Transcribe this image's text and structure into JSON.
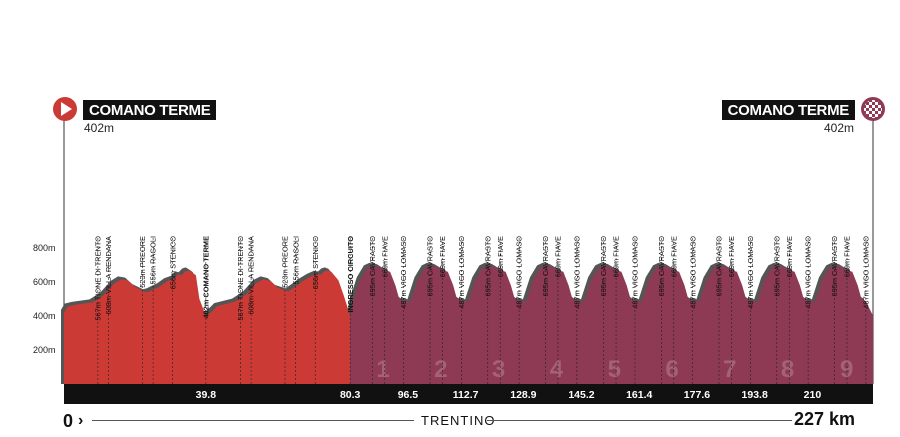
{
  "header": {
    "start_name": "COMANO TERME",
    "start_alt": "402m",
    "finish_name": "COMANO TERME",
    "finish_alt": "402m"
  },
  "footer": {
    "start_km": "0",
    "region": "TRENTINO",
    "total": "227 km"
  },
  "chart_data": {
    "type": "area",
    "title": "",
    "xlabel": "km",
    "ylabel": "altitude (m)",
    "xlim": [
      0,
      227
    ],
    "ylim": [
      0,
      900
    ],
    "y_ticks": [
      {
        "value": 800,
        "label": "800m"
      },
      {
        "value": 600,
        "label": "600m"
      },
      {
        "value": 400,
        "label": "400m"
      },
      {
        "value": 200,
        "label": "200m"
      }
    ],
    "colors": {
      "outer": "#cc3a36",
      "circuit": "#8e3a55",
      "shade": "#555555",
      "ground": "#111111"
    },
    "circuit_start_km": 80.3,
    "circuit_laps": [
      "1",
      "2",
      "3",
      "4",
      "5",
      "6",
      "7",
      "8",
      "9"
    ],
    "profile": [
      [
        0,
        418
      ],
      [
        1,
        455
      ],
      [
        3,
        465
      ],
      [
        8,
        480
      ],
      [
        11,
        520
      ],
      [
        14,
        590
      ],
      [
        16,
        615
      ],
      [
        18,
        608
      ],
      [
        20,
        570
      ],
      [
        23,
        540
      ],
      [
        24,
        545
      ],
      [
        27,
        575
      ],
      [
        29,
        605
      ],
      [
        31,
        620
      ],
      [
        32,
        645
      ],
      [
        33,
        640
      ],
      [
        34,
        662
      ],
      [
        35,
        668
      ],
      [
        36,
        655
      ],
      [
        37,
        640
      ],
      [
        38,
        500
      ],
      [
        39.8,
        402
      ],
      [
        41,
        415
      ],
      [
        43,
        458
      ],
      [
        48,
        485
      ],
      [
        51,
        525
      ],
      [
        54,
        595
      ],
      [
        56,
        615
      ],
      [
        58,
        605
      ],
      [
        60,
        565
      ],
      [
        63,
        545
      ],
      [
        65,
        575
      ],
      [
        67,
        605
      ],
      [
        69,
        630
      ],
      [
        71,
        648
      ],
      [
        72,
        642
      ],
      [
        73,
        662
      ],
      [
        74,
        668
      ],
      [
        75,
        660
      ],
      [
        77,
        610
      ],
      [
        78.5,
        520
      ],
      [
        80.3,
        402
      ],
      [
        81,
        480
      ],
      [
        83,
        610
      ],
      [
        85,
        680
      ],
      [
        86.5,
        695
      ],
      [
        88.5,
        688
      ],
      [
        90,
        669
      ],
      [
        91.5,
        660
      ],
      [
        93,
        580
      ],
      [
        94,
        505
      ],
      [
        95.3,
        487
      ],
      [
        96.5,
        487
      ],
      [
        97.2,
        480
      ],
      [
        99.2,
        610
      ],
      [
        101.2,
        680
      ],
      [
        102.7,
        695
      ],
      [
        104.7,
        688
      ],
      [
        106.2,
        669
      ],
      [
        107.7,
        660
      ],
      [
        109.2,
        580
      ],
      [
        110.2,
        505
      ],
      [
        111.5,
        487
      ],
      [
        112.7,
        487
      ],
      [
        113.4,
        480
      ],
      [
        115.4,
        610
      ],
      [
        117.4,
        680
      ],
      [
        118.9,
        695
      ],
      [
        120.9,
        688
      ],
      [
        122.4,
        669
      ],
      [
        123.9,
        660
      ],
      [
        125.4,
        580
      ],
      [
        126.4,
        505
      ],
      [
        127.7,
        487
      ],
      [
        128.9,
        487
      ],
      [
        129.6,
        480
      ],
      [
        131.6,
        610
      ],
      [
        133.6,
        680
      ],
      [
        135.1,
        695
      ],
      [
        137.1,
        688
      ],
      [
        138.6,
        669
      ],
      [
        140.1,
        660
      ],
      [
        141.6,
        580
      ],
      [
        142.6,
        505
      ],
      [
        143.9,
        487
      ],
      [
        145.2,
        487
      ],
      [
        145.9,
        480
      ],
      [
        147.9,
        610
      ],
      [
        149.9,
        680
      ],
      [
        151.4,
        695
      ],
      [
        153.4,
        688
      ],
      [
        154.9,
        669
      ],
      [
        156.4,
        660
      ],
      [
        157.9,
        580
      ],
      [
        158.9,
        505
      ],
      [
        160.2,
        487
      ],
      [
        161.4,
        487
      ],
      [
        162.1,
        480
      ],
      [
        164.1,
        610
      ],
      [
        166.1,
        680
      ],
      [
        167.6,
        695
      ],
      [
        169.6,
        688
      ],
      [
        171.1,
        669
      ],
      [
        172.6,
        660
      ],
      [
        174.1,
        580
      ],
      [
        175.1,
        505
      ],
      [
        176.4,
        487
      ],
      [
        177.6,
        487
      ],
      [
        178.3,
        480
      ],
      [
        180.3,
        610
      ],
      [
        182.3,
        680
      ],
      [
        183.8,
        695
      ],
      [
        185.8,
        688
      ],
      [
        187.3,
        669
      ],
      [
        188.8,
        660
      ],
      [
        190.3,
        580
      ],
      [
        191.3,
        505
      ],
      [
        192.6,
        487
      ],
      [
        193.8,
        487
      ],
      [
        194.5,
        480
      ],
      [
        196.5,
        610
      ],
      [
        198.5,
        680
      ],
      [
        200,
        695
      ],
      [
        202,
        688
      ],
      [
        203.5,
        669
      ],
      [
        205,
        660
      ],
      [
        206.5,
        580
      ],
      [
        207.5,
        505
      ],
      [
        208.8,
        487
      ],
      [
        210,
        487
      ],
      [
        210.7,
        480
      ],
      [
        212.7,
        610
      ],
      [
        214.7,
        680
      ],
      [
        216.2,
        695
      ],
      [
        218.2,
        688
      ],
      [
        219.7,
        669
      ],
      [
        221.2,
        660
      ],
      [
        222.7,
        580
      ],
      [
        223.7,
        505
      ],
      [
        225,
        487
      ],
      [
        227,
        402
      ]
    ],
    "markers": [
      {
        "km": 9.5,
        "alt": 567,
        "text": "567m TIONE DI TRENTO",
        "bold": false
      },
      {
        "km": 12.5,
        "alt": 608,
        "text": "608m VILLA RENDANA",
        "bold": false
      },
      {
        "km": 22,
        "alt": 523,
        "text": "523m PREORE",
        "bold": false
      },
      {
        "km": 25,
        "alt": 556,
        "text": "556m RAGOLI",
        "bold": false
      },
      {
        "km": 30.5,
        "alt": 656,
        "text": "656m STENICO",
        "bold": false
      },
      {
        "km": 39.8,
        "alt": 402,
        "text": "402m COMANO TERME",
        "bold": true
      },
      {
        "km": 49.5,
        "alt": 567,
        "text": "567m TIONE DI TRENTO",
        "bold": false
      },
      {
        "km": 52.5,
        "alt": 608,
        "text": "608m VILLA RENDANA",
        "bold": false
      },
      {
        "km": 62,
        "alt": 523,
        "text": "523m PREORE",
        "bold": false
      },
      {
        "km": 65,
        "alt": 556,
        "text": "556m RAGOLI",
        "bold": false
      },
      {
        "km": 70.5,
        "alt": 656,
        "text": "656m STENICO",
        "bold": false
      },
      {
        "km": 80.3,
        "alt": 402,
        "text": "INGRESSO CIRCUITO",
        "bold": true
      },
      {
        "km": 86.5,
        "alt": 695,
        "text": "695m CAVRASTO",
        "bold": false
      },
      {
        "km": 90,
        "alt": 669,
        "text": "669m FIAVE",
        "bold": false
      },
      {
        "km": 95.3,
        "alt": 487,
        "text": "487m VIGO LOMASO",
        "bold": false
      },
      {
        "km": 102.7,
        "alt": 695,
        "text": "695m CAVRASTO",
        "bold": false
      },
      {
        "km": 106.2,
        "alt": 669,
        "text": "669m FIAVE",
        "bold": false
      },
      {
        "km": 111.5,
        "alt": 487,
        "text": "487m VIGO LOMASO",
        "bold": false
      },
      {
        "km": 118.9,
        "alt": 695,
        "text": "695m CAVRASTO",
        "bold": false
      },
      {
        "km": 122.4,
        "alt": 669,
        "text": "669m FIAVE",
        "bold": false
      },
      {
        "km": 127.7,
        "alt": 487,
        "text": "487m VIGO LOMASO",
        "bold": false
      },
      {
        "km": 135.1,
        "alt": 695,
        "text": "695m CAVRASTO",
        "bold": false
      },
      {
        "km": 138.6,
        "alt": 669,
        "text": "669m FIAVE",
        "bold": false
      },
      {
        "km": 143.9,
        "alt": 487,
        "text": "487m VIGO LOMASO",
        "bold": false
      },
      {
        "km": 151.4,
        "alt": 695,
        "text": "695m CAVRASTO",
        "bold": false
      },
      {
        "km": 154.9,
        "alt": 669,
        "text": "669m FIAVE",
        "bold": false
      },
      {
        "km": 160.2,
        "alt": 487,
        "text": "487m VIGO LOMASO",
        "bold": false
      },
      {
        "km": 167.6,
        "alt": 695,
        "text": "695m CAVRASTO",
        "bold": false
      },
      {
        "km": 171.1,
        "alt": 669,
        "text": "669m FIAVE",
        "bold": false
      },
      {
        "km": 176.4,
        "alt": 487,
        "text": "487m VIGO LOMASO",
        "bold": false
      },
      {
        "km": 183.8,
        "alt": 695,
        "text": "695m CAVRASTO",
        "bold": false
      },
      {
        "km": 187.3,
        "alt": 669,
        "text": "669m FIAVE",
        "bold": false
      },
      {
        "km": 192.6,
        "alt": 487,
        "text": "487m VIGO LOMASO",
        "bold": false
      },
      {
        "km": 200,
        "alt": 695,
        "text": "695m CAVRASTO",
        "bold": false
      },
      {
        "km": 203.5,
        "alt": 669,
        "text": "669m FIAVE",
        "bold": false
      },
      {
        "km": 208.8,
        "alt": 487,
        "text": "487m VIGO LOMASO",
        "bold": false
      },
      {
        "km": 216.2,
        "alt": 695,
        "text": "695m CAVRASTO",
        "bold": false
      },
      {
        "km": 219.7,
        "alt": 669,
        "text": "669m FIAVE",
        "bold": false
      },
      {
        "km": 225,
        "alt": 487,
        "text": "487m VIGO LOMASO",
        "bold": false
      }
    ],
    "km_labels": [
      {
        "km": 39.8,
        "text": "39.8"
      },
      {
        "km": 80.3,
        "text": "80.3"
      },
      {
        "km": 96.5,
        "text": "96.5"
      },
      {
        "km": 112.7,
        "text": "112.7"
      },
      {
        "km": 128.9,
        "text": "128.9"
      },
      {
        "km": 145.2,
        "text": "145.2"
      },
      {
        "km": 161.4,
        "text": "161.4"
      },
      {
        "km": 177.6,
        "text": "177.6"
      },
      {
        "km": 193.8,
        "text": "193.8"
      },
      {
        "km": 210,
        "text": "210"
      }
    ]
  }
}
